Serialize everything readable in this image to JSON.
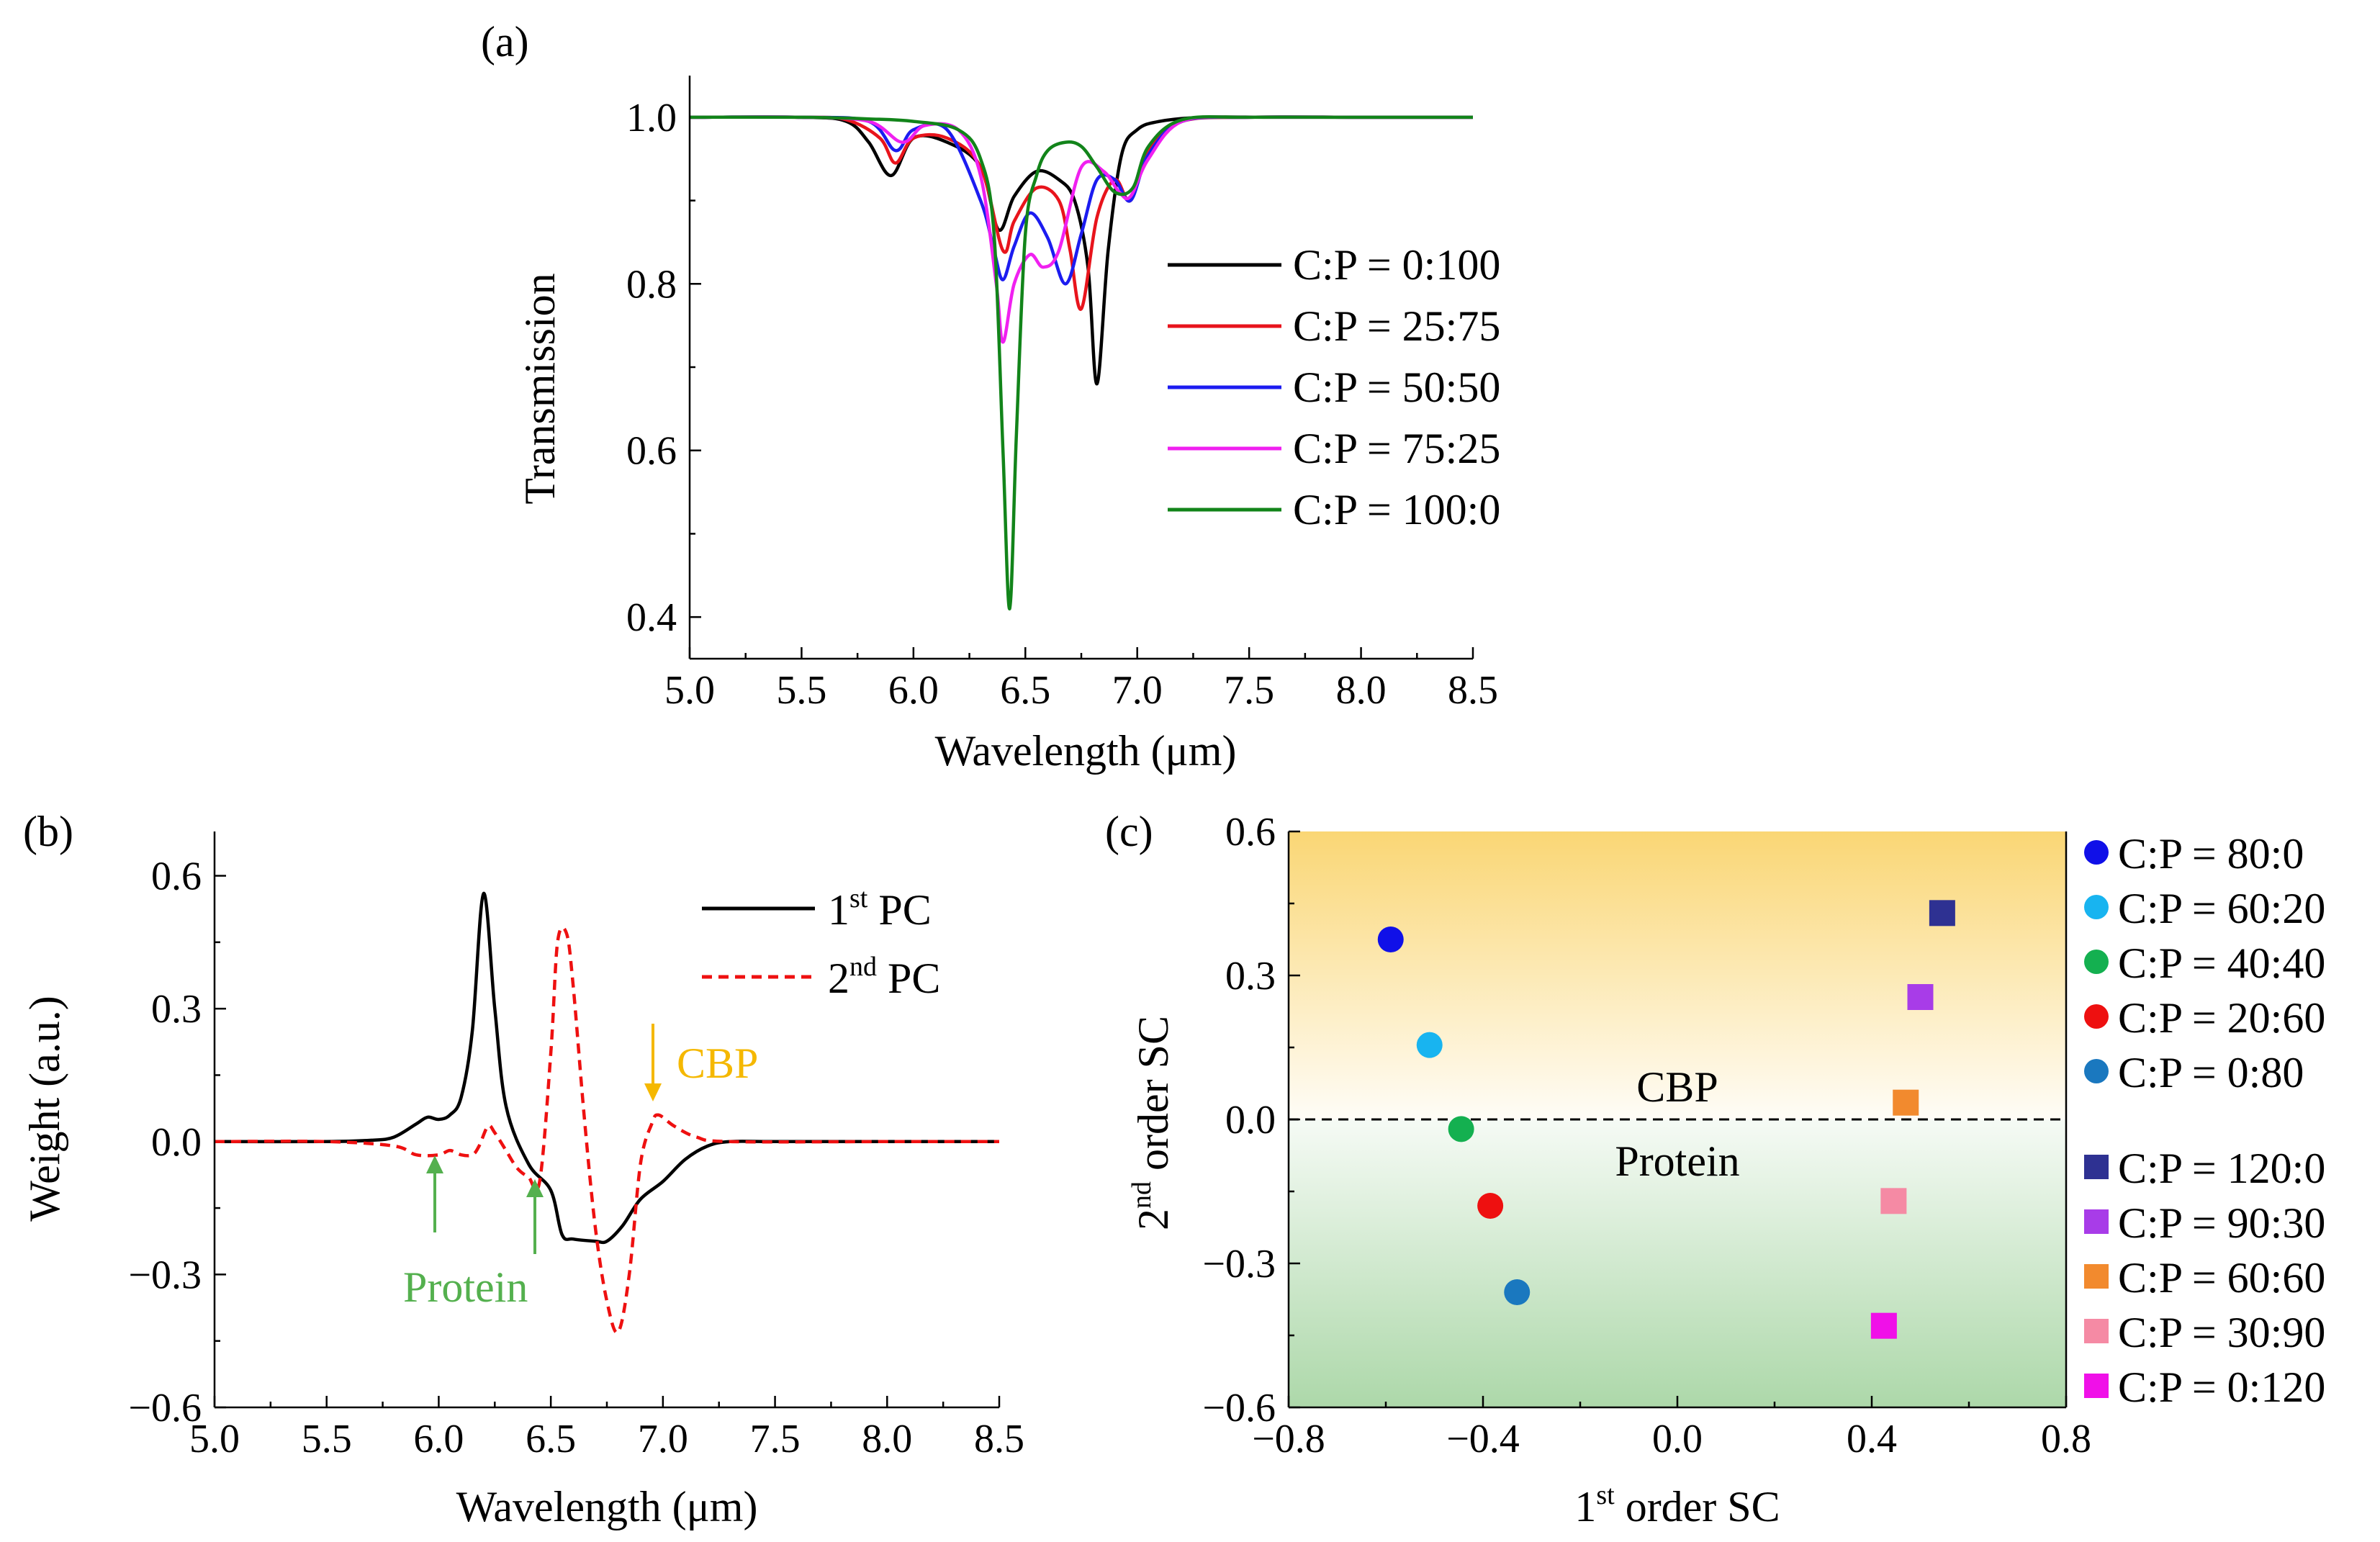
{
  "chart_data": [
    {
      "panel": "(a)",
      "type": "line",
      "xlabel": "Wavelength (μm)",
      "ylabel": "Transmission",
      "xlim": [
        5.0,
        8.5
      ],
      "ylim": [
        0.35,
        1.05
      ],
      "xticks": [
        5.0,
        5.5,
        6.0,
        6.5,
        7.0,
        7.5,
        8.0,
        8.5
      ],
      "xtick_labels": [
        "5.0",
        "5.5",
        "6.0",
        "6.5",
        "7.0",
        "7.5",
        "8.0",
        "8.5"
      ],
      "yticks": [
        0.4,
        0.6,
        0.8,
        1.0
      ],
      "ytick_labels": [
        "0.4",
        "0.6",
        "0.8",
        "1.0"
      ],
      "legend_position": "right",
      "series": [
        {
          "name": "C:P = 0:100",
          "color": "#000000",
          "x": [
            5.0,
            5.5,
            5.7,
            5.8,
            5.9,
            6.0,
            6.15,
            6.3,
            6.38,
            6.45,
            6.55,
            6.65,
            6.72,
            6.78,
            6.82,
            6.87,
            6.93,
            7.0,
            7.1,
            7.3,
            7.6,
            8.0,
            8.5
          ],
          "y": [
            1.0,
            1.0,
            0.995,
            0.97,
            0.93,
            0.975,
            0.97,
            0.94,
            0.865,
            0.905,
            0.935,
            0.925,
            0.9,
            0.82,
            0.68,
            0.84,
            0.955,
            0.985,
            0.995,
            1.0,
            1.0,
            1.0,
            1.0
          ]
        },
        {
          "name": "C:P = 25:75",
          "color": "#e8141c",
          "x": [
            5.0,
            5.5,
            5.7,
            5.85,
            5.92,
            6.0,
            6.15,
            6.3,
            6.4,
            6.45,
            6.55,
            6.65,
            6.7,
            6.75,
            6.82,
            6.9,
            6.97,
            7.05,
            7.2,
            7.5,
            8.0,
            8.5
          ],
          "y": [
            1.0,
            1.0,
            0.997,
            0.975,
            0.945,
            0.975,
            0.975,
            0.94,
            0.84,
            0.875,
            0.915,
            0.9,
            0.84,
            0.77,
            0.88,
            0.925,
            0.9,
            0.96,
            0.995,
            1.0,
            1.0,
            1.0
          ]
        },
        {
          "name": "C:P = 50:50",
          "color": "#1c1cf0",
          "x": [
            5.0,
            5.5,
            5.8,
            5.92,
            6.0,
            6.15,
            6.3,
            6.36,
            6.4,
            6.45,
            6.52,
            6.6,
            6.68,
            6.75,
            6.82,
            6.9,
            6.97,
            7.05,
            7.2,
            7.5,
            8.0,
            8.5
          ],
          "y": [
            1.0,
            1.0,
            0.995,
            0.96,
            0.985,
            0.985,
            0.9,
            0.84,
            0.805,
            0.845,
            0.885,
            0.855,
            0.8,
            0.86,
            0.925,
            0.925,
            0.9,
            0.955,
            0.995,
            1.0,
            1.0,
            1.0
          ]
        },
        {
          "name": "C:P = 75:25",
          "color": "#f020f0",
          "x": [
            5.0,
            5.5,
            5.8,
            5.95,
            6.05,
            6.2,
            6.3,
            6.37,
            6.4,
            6.45,
            6.52,
            6.58,
            6.65,
            6.75,
            6.85,
            6.92,
            6.97,
            7.05,
            7.2,
            7.5,
            8.0,
            8.5
          ],
          "y": [
            1.0,
            1.0,
            0.995,
            0.97,
            0.99,
            0.985,
            0.93,
            0.8,
            0.73,
            0.8,
            0.835,
            0.82,
            0.84,
            0.94,
            0.935,
            0.91,
            0.905,
            0.95,
            0.995,
            1.0,
            1.0,
            1.0
          ]
        },
        {
          "name": "C:P = 100:0",
          "color": "#12841a",
          "x": [
            5.0,
            5.5,
            5.8,
            6.0,
            6.2,
            6.3,
            6.36,
            6.4,
            6.43,
            6.46,
            6.5,
            6.55,
            6.6,
            6.68,
            6.75,
            6.82,
            6.9,
            6.98,
            7.05,
            7.2,
            7.5,
            8.0,
            8.5
          ],
          "y": [
            1.0,
            1.0,
            0.998,
            0.995,
            0.985,
            0.95,
            0.86,
            0.6,
            0.41,
            0.62,
            0.86,
            0.93,
            0.96,
            0.97,
            0.965,
            0.94,
            0.91,
            0.915,
            0.965,
            0.997,
            1.0,
            1.0,
            1.0
          ]
        }
      ]
    },
    {
      "panel": "(b)",
      "type": "line",
      "xlabel": "Wavelength (μm)",
      "ylabel": "Weight (a.u.)",
      "xlim": [
        5.0,
        8.5
      ],
      "ylim": [
        -0.6,
        0.7
      ],
      "xticks": [
        5.0,
        5.5,
        6.0,
        6.5,
        7.0,
        7.5,
        8.0,
        8.5
      ],
      "xtick_labels": [
        "5.0",
        "5.5",
        "6.0",
        "6.5",
        "7.0",
        "7.5",
        "8.0",
        "8.5"
      ],
      "yticks": [
        -0.6,
        -0.3,
        0.0,
        0.3,
        0.6
      ],
      "ytick_labels": [
        "−0.6",
        "−0.3",
        "0.0",
        "0.3",
        "0.6"
      ],
      "legend_position": "top-right",
      "series": [
        {
          "name": "1st PC",
          "name_main": "1",
          "name_sup": "st",
          "name_rest": " PC",
          "color": "#000000",
          "dash": "solid",
          "x": [
            5.0,
            5.5,
            5.7,
            5.8,
            5.9,
            5.95,
            6.0,
            6.05,
            6.1,
            6.15,
            6.2,
            6.25,
            6.3,
            6.4,
            6.5,
            6.55,
            6.6,
            6.7,
            6.75,
            6.82,
            6.9,
            7.0,
            7.1,
            7.2,
            7.3,
            7.5,
            8.0,
            8.5
          ],
          "y": [
            0.0,
            0.0,
            0.003,
            0.01,
            0.04,
            0.055,
            0.05,
            0.06,
            0.1,
            0.25,
            0.56,
            0.3,
            0.08,
            -0.05,
            -0.11,
            -0.21,
            -0.22,
            -0.225,
            -0.225,
            -0.19,
            -0.13,
            -0.09,
            -0.04,
            -0.01,
            0.0,
            0.0,
            0.0,
            0.0
          ]
        },
        {
          "name": "2nd PC",
          "name_main": "2",
          "name_sup": "nd",
          "name_rest": " PC",
          "color": "#ee1010",
          "dash": "dashed",
          "x": [
            5.0,
            5.5,
            5.8,
            5.9,
            6.0,
            6.05,
            6.1,
            6.15,
            6.18,
            6.22,
            6.25,
            6.3,
            6.35,
            6.4,
            6.45,
            6.5,
            6.53,
            6.57,
            6.6,
            6.65,
            6.7,
            6.75,
            6.8,
            6.85,
            6.9,
            6.95,
            6.98,
            7.05,
            7.15,
            7.3,
            8.0,
            8.5
          ],
          "y": [
            0.0,
            0.0,
            -0.01,
            -0.03,
            -0.03,
            -0.02,
            -0.03,
            -0.03,
            -0.01,
            0.035,
            0.02,
            -0.02,
            -0.06,
            -0.08,
            -0.09,
            0.2,
            0.45,
            0.47,
            0.35,
            0.05,
            -0.2,
            -0.36,
            -0.43,
            -0.3,
            -0.05,
            0.04,
            0.06,
            0.035,
            0.01,
            0.0,
            0.0,
            0.0
          ]
        }
      ],
      "annotations": [
        {
          "text": "CBP",
          "color": "#f5b800",
          "arrow": "down",
          "x": 6.97
        },
        {
          "text": "Protein",
          "color": "#54b04e",
          "arrow": "up",
          "x": [
            5.98,
            6.43
          ]
        }
      ]
    },
    {
      "panel": "(c)",
      "type": "scatter",
      "xlabel": "1st order SC",
      "xlabel_main": "1",
      "xlabel_sup": "st",
      "xlabel_rest": " order SC",
      "ylabel": "2nd order SC",
      "ylabel_main": "2",
      "ylabel_sup": "nd",
      "ylabel_rest": " order SC",
      "xlim": [
        -0.8,
        0.8
      ],
      "ylim": [
        -0.6,
        0.6
      ],
      "xticks": [
        -0.8,
        -0.4,
        0.0,
        0.4,
        0.8
      ],
      "xtick_labels": [
        "−0.8",
        "−0.4",
        "0.0",
        "0.4",
        "0.8"
      ],
      "yticks": [
        -0.6,
        -0.3,
        0.0,
        0.3,
        0.6
      ],
      "ytick_labels": [
        "−0.6",
        "−0.3",
        "0.0",
        "0.3",
        "0.6"
      ],
      "region_labels": {
        "upper": "CBP",
        "lower": "Protein"
      },
      "region_colors": {
        "upper": "#f9cf5c",
        "lower": "#9ed19a"
      },
      "legend_position": "right",
      "series": [
        {
          "name": "C:P = 80:0",
          "marker": "circle",
          "color": "#1010e8",
          "x": -0.59,
          "y": 0.375
        },
        {
          "name": "C:P = 60:20",
          "marker": "circle",
          "color": "#18b4f0",
          "x": -0.51,
          "y": 0.155
        },
        {
          "name": "C:P = 40:40",
          "marker": "circle",
          "color": "#14b050",
          "x": -0.445,
          "y": -0.02
        },
        {
          "name": "C:P = 20:60",
          "marker": "circle",
          "color": "#ee1010",
          "x": -0.385,
          "y": -0.18
        },
        {
          "name": "C:P = 0:80",
          "marker": "circle",
          "color": "#1a78bf",
          "x": -0.33,
          "y": -0.36
        },
        {
          "name": "C:P = 120:0",
          "marker": "square",
          "color": "#2e3192",
          "x": 0.545,
          "y": 0.43
        },
        {
          "name": "C:P = 90:30",
          "marker": "square",
          "color": "#a83ce8",
          "x": 0.5,
          "y": 0.255
        },
        {
          "name": "C:P = 60:60",
          "marker": "square",
          "color": "#f28a2e",
          "x": 0.47,
          "y": 0.035
        },
        {
          "name": "C:P = 30:90",
          "marker": "square",
          "color": "#f58aa4",
          "x": 0.445,
          "y": -0.17
        },
        {
          "name": "C:P = 0:120",
          "marker": "square",
          "color": "#f010e8",
          "x": 0.425,
          "y": -0.43
        }
      ]
    }
  ]
}
